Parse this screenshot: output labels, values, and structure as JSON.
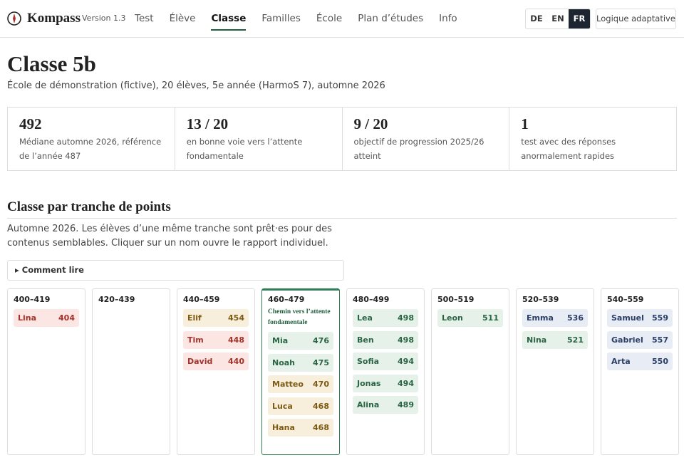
{
  "header": {
    "brand": "Kompass",
    "version": "Version 1.3",
    "nav": [
      {
        "label": "Test"
      },
      {
        "label": "Élève"
      },
      {
        "label": "Classe",
        "active": true
      },
      {
        "label": "Familles"
      },
      {
        "label": "École"
      },
      {
        "label": "Plan d’études"
      },
      {
        "label": "Info"
      }
    ],
    "languages": [
      {
        "label": "DE"
      },
      {
        "label": "EN"
      },
      {
        "label": "FR",
        "active": true
      }
    ],
    "button": "Logique adaptative"
  },
  "page": {
    "title": "Classe 5b",
    "subtitle": "École de démonstration (fictive), 20 élèves, 5e année (HarmoS 7), automne 2026"
  },
  "stats": [
    {
      "value": "492",
      "label": "Médiane automne 2026, référence de l’année 487"
    },
    {
      "value": "13 / 20",
      "label": "en bonne voie vers l’attente fondamentale"
    },
    {
      "value": "9 / 20",
      "label": "objectif de progression 2025/26 atteint"
    },
    {
      "value": "1",
      "label": "test avec des réponses anormalement rapides"
    }
  ],
  "section": {
    "title": "Classe par tranche de points",
    "description": "Automne 2026. Les élèves d’une même tranche sont prêt·es pour des contenus semblables. Cliquer sur un nom ouvre le rapport individuel.",
    "details": "Comment lire"
  },
  "bands": [
    {
      "range": "400–419",
      "students": [
        {
          "name": "Lina",
          "score": 404,
          "tone": "red"
        }
      ]
    },
    {
      "range": "420–439",
      "students": []
    },
    {
      "range": "440–459",
      "students": [
        {
          "name": "Elif",
          "score": 454,
          "tone": "yellow"
        },
        {
          "name": "Tim",
          "score": 448,
          "tone": "red"
        },
        {
          "name": "David",
          "score": 440,
          "tone": "red"
        }
      ]
    },
    {
      "range": "460–479",
      "highlight": true,
      "note": "Chemin vers l’attente fondamentale",
      "students": [
        {
          "name": "Mia",
          "score": 476,
          "tone": "green"
        },
        {
          "name": "Noah",
          "score": 475,
          "tone": "green"
        },
        {
          "name": "Matteo",
          "score": 470,
          "tone": "yellow"
        },
        {
          "name": "Luca",
          "score": 468,
          "tone": "yellow"
        },
        {
          "name": "Hana",
          "score": 468,
          "tone": "yellow"
        }
      ]
    },
    {
      "range": "480–499",
      "students": [
        {
          "name": "Lea",
          "score": 498,
          "tone": "green"
        },
        {
          "name": "Ben",
          "score": 498,
          "tone": "green"
        },
        {
          "name": "Sofia",
          "score": 494,
          "tone": "green"
        },
        {
          "name": "Jonas",
          "score": 494,
          "tone": "green"
        },
        {
          "name": "Alina",
          "score": 489,
          "tone": "green"
        }
      ]
    },
    {
      "range": "500–519",
      "students": [
        {
          "name": "Leon",
          "score": 511,
          "tone": "green"
        }
      ]
    },
    {
      "range": "520–539",
      "students": [
        {
          "name": "Emma",
          "score": 536,
          "tone": "blue"
        },
        {
          "name": "Nina",
          "score": 521,
          "tone": "green"
        }
      ]
    },
    {
      "range": "540–559",
      "students": [
        {
          "name": "Samuel",
          "score": 559,
          "tone": "blue"
        },
        {
          "name": "Gabriel",
          "score": 557,
          "tone": "blue"
        },
        {
          "name": "Arta",
          "score": 550,
          "tone": "blue"
        }
      ]
    }
  ]
}
